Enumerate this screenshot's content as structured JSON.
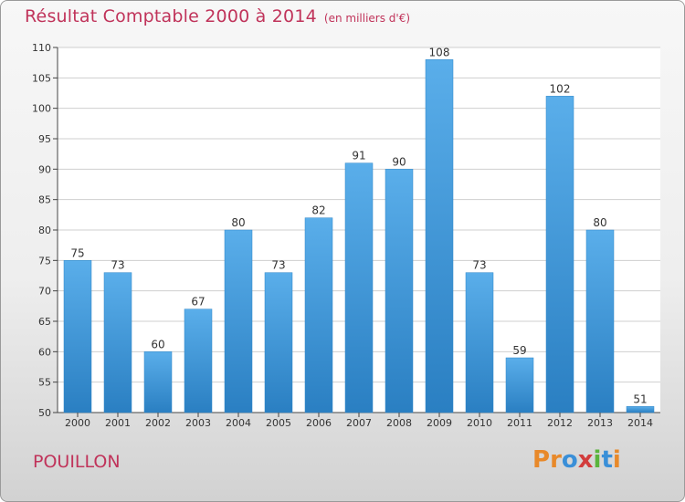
{
  "header": {
    "title": "Résultat Comptable 2000 à 2014",
    "subtitle": "(en milliers d'€)"
  },
  "footer": {
    "place": "POUILLON",
    "logo_text": "Proxiti"
  },
  "colors": {
    "title": "#c0335a",
    "bar_top": "#5aaeea",
    "bar_bottom": "#2a7fc2"
  },
  "chart_data": {
    "type": "bar",
    "title": "Résultat Comptable 2000 à 2014",
    "subtitle": "(en milliers d'€)",
    "categories": [
      "2000",
      "2001",
      "2002",
      "2003",
      "2004",
      "2005",
      "2006",
      "2007",
      "2008",
      "2009",
      "2010",
      "2011",
      "2012",
      "2013",
      "2014"
    ],
    "values": [
      75,
      73,
      60,
      67,
      80,
      73,
      82,
      91,
      90,
      108,
      73,
      59,
      102,
      80,
      51
    ],
    "ylim": [
      50,
      110
    ],
    "yticks": [
      50,
      55,
      60,
      65,
      70,
      75,
      80,
      85,
      90,
      95,
      100,
      105,
      110
    ],
    "grid": true,
    "data_labels": true
  }
}
